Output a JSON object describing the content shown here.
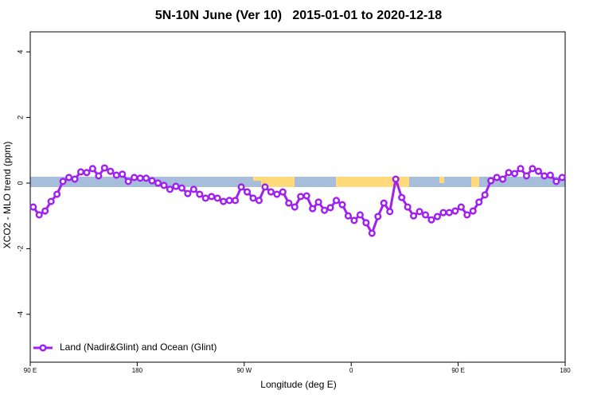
{
  "chart_data": {
    "type": "line",
    "title": "5N-10N June (Ver 10)   2015-01-01 to 2020-12-18",
    "xlabel": "Longitude (deg E)",
    "ylabel": "XCO2 - MLO trend (ppm)",
    "xlim": [
      90,
      540
    ],
    "ylim": [
      -5.46,
      4.61
    ],
    "xticks": [
      {
        "value": 90,
        "label": "90 E"
      },
      180,
      {
        "value": 270,
        "label": "90 W"
      },
      {
        "value": 360,
        "label": "0"
      },
      {
        "value": 450,
        "label": "90 E"
      },
      {
        "value": 540,
        "label": "180"
      }
    ],
    "yticks": [
      -4,
      -2,
      0,
      2,
      4
    ],
    "x": [
      92.5,
      97.5,
      102.5,
      107.5,
      112.5,
      117.5,
      122.5,
      127.5,
      132.5,
      137.5,
      142.5,
      147.5,
      152.5,
      157.5,
      162.5,
      167.5,
      172.5,
      177.5,
      182.5,
      187.5,
      192.5,
      197.5,
      202.5,
      207.5,
      212.5,
      217.5,
      222.5,
      227.5,
      232.5,
      237.5,
      242.5,
      247.5,
      252.5,
      257.5,
      262.5,
      267.5,
      272.5,
      277.5,
      282.5,
      287.5,
      292.5,
      297.5,
      302.5,
      307.5,
      312.5,
      317.5,
      322.5,
      327.5,
      332.5,
      337.5,
      342.5,
      347.5,
      352.5,
      357.5,
      362.5,
      367.5,
      372.5,
      377.5,
      382.5,
      387.5,
      392.5,
      397.5,
      402.5,
      407.5,
      412.5,
      417.5,
      422.5,
      427.5,
      432.5,
      437.5,
      442.5,
      447.5,
      452.5,
      457.5,
      462.5,
      467.5,
      472.5,
      477.5,
      482.5,
      487.5,
      492.5,
      497.5,
      502.5,
      507.5,
      512.5,
      517.5,
      522.5,
      527.5,
      532.5,
      537.5
    ],
    "series": [
      {
        "name": "Land (Nadir&Glint) and Ocean (Glint)",
        "color": "#a020f0",
        "values": [
          -0.73,
          -0.97,
          -0.85,
          -0.56,
          -0.34,
          0.05,
          0.17,
          0.12,
          0.34,
          0.32,
          0.44,
          0.22,
          0.46,
          0.36,
          0.24,
          0.27,
          0.05,
          0.17,
          0.15,
          0.15,
          0.07,
          0,
          -0.07,
          -0.19,
          -0.1,
          -0.15,
          -0.32,
          -0.19,
          -0.34,
          -0.46,
          -0.41,
          -0.46,
          -0.56,
          -0.53,
          -0.53,
          -0.12,
          -0.27,
          -0.46,
          -0.53,
          -0.12,
          -0.27,
          -0.34,
          -0.27,
          -0.61,
          -0.73,
          -0.41,
          -0.39,
          -0.78,
          -0.58,
          -0.83,
          -0.75,
          -0.53,
          -0.66,
          -1.0,
          -1.14,
          -0.97,
          -1.21,
          -1.53,
          -1.02,
          -0.61,
          -0.87,
          0.12,
          -0.44,
          -0.73,
          -1.0,
          -0.87,
          -0.97,
          -1.12,
          -1.02,
          -0.9,
          -0.9,
          -0.85,
          -0.73,
          -0.97,
          -0.85,
          -0.58,
          -0.36,
          0.07,
          0.17,
          0.12,
          0.32,
          0.29,
          0.44,
          0.22,
          0.44,
          0.36,
          0.22,
          0.24,
          0.05,
          0.17
        ]
      }
    ],
    "legend": "lower left"
  }
}
